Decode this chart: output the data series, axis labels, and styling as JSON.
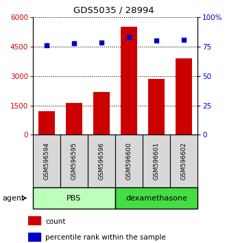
{
  "title": "GDS5035 / 28994",
  "categories": [
    "GSM596594",
    "GSM596595",
    "GSM596596",
    "GSM596600",
    "GSM596601",
    "GSM596602"
  ],
  "counts": [
    1200,
    1620,
    2200,
    5500,
    2850,
    3900
  ],
  "percentiles": [
    76,
    78,
    78.5,
    83,
    80,
    80.5
  ],
  "bar_color": "#cc0000",
  "dot_color": "#0000cc",
  "yleft_max": 6000,
  "yleft_ticks": [
    0,
    1500,
    3000,
    4500,
    6000
  ],
  "yright_max": 100,
  "yright_ticks": [
    0,
    25,
    50,
    75,
    100
  ],
  "yright_labels": [
    "0",
    "25",
    "50",
    "75",
    "100%"
  ],
  "group_labels": [
    "PBS",
    "dexamethasone"
  ],
  "group_colors": [
    "#bbffbb",
    "#44dd44"
  ],
  "agent_label": "agent",
  "legend_count_label": "count",
  "legend_pct_label": "percentile rank within the sample",
  "xlab_bg": "#d8d8d8",
  "title_color": "#000000"
}
